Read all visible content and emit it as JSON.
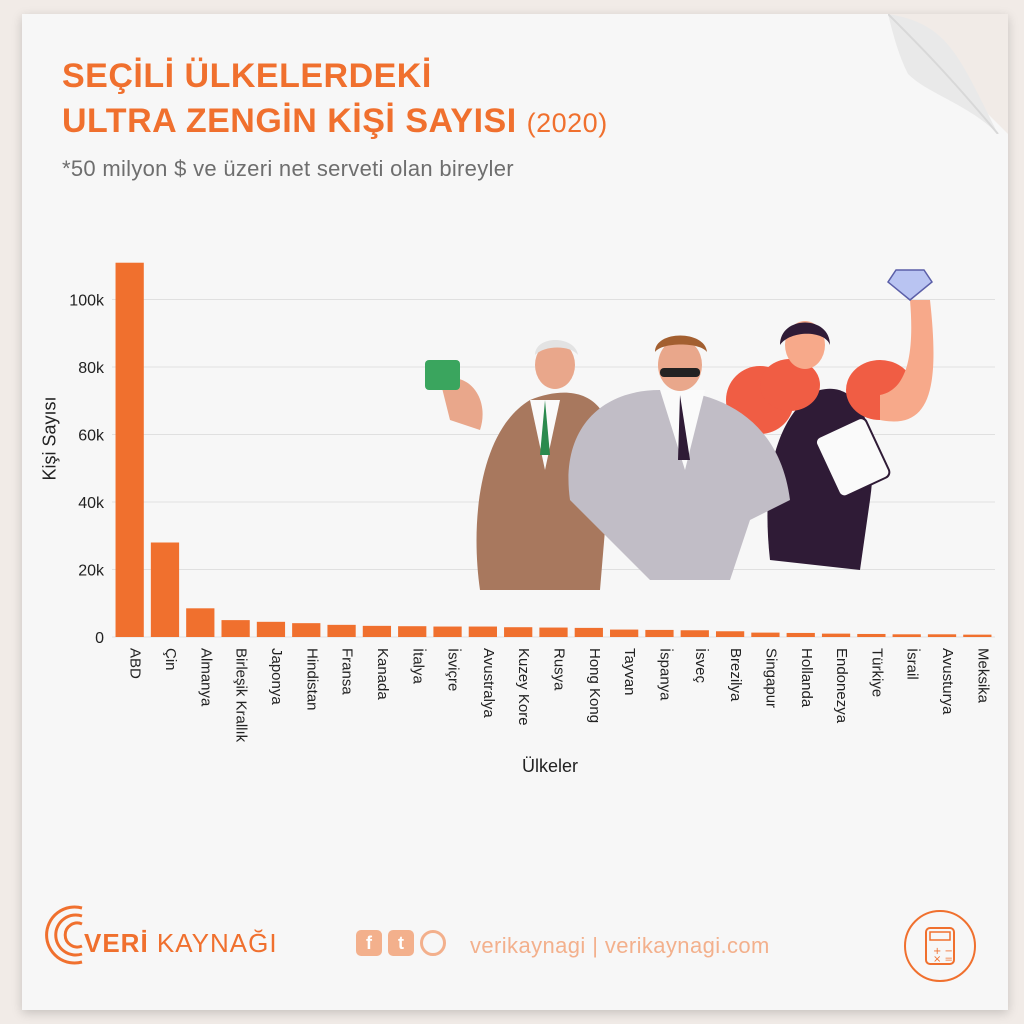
{
  "header": {
    "title_line1": "SEÇİLİ ÜLKELERDEKİ",
    "title_line2": "ULTRA ZENGİN KİŞİ SAYISI",
    "year": "(2020)",
    "subtitle": "*50 milyon $ ve üzeri net serveti olan bireyler"
  },
  "chart_data": {
    "type": "bar",
    "title": "SEÇİLİ ÜLKELERDEKİ ULTRA ZENGİN KİŞİ SAYISI (2020)",
    "xlabel": "Ülkeler",
    "ylabel": "Kişi Sayısı",
    "ylim": [
      0,
      110000
    ],
    "yticks": [
      0,
      20000,
      40000,
      60000,
      80000,
      100000
    ],
    "ytick_labels": [
      "0",
      "20k",
      "40k",
      "60k",
      "80k",
      "100k"
    ],
    "grid": true,
    "bar_color": "#f0702e",
    "categories": [
      "ABD",
      "Çin",
      "Almanya",
      "Birleşik Krallık",
      "Japonya",
      "Hindistan",
      "Fransa",
      "Kanada",
      "İtalya",
      "İsviçre",
      "Avustralya",
      "Kuzey Kore",
      "Rusya",
      "Hong Kong",
      "Tayvan",
      "İspanya",
      "İsveç",
      "Brezilya",
      "Singapur",
      "Hollanda",
      "Endonezya",
      "Türkiye",
      "İsrail",
      "Avusturya",
      "Meksika"
    ],
    "values": [
      110900,
      28000,
      8500,
      5000,
      4500,
      4100,
      3600,
      3300,
      3200,
      3100,
      3100,
      2900,
      2800,
      2700,
      2200,
      2100,
      2000,
      1700,
      1300,
      1200,
      1000,
      900,
      800,
      800,
      700
    ]
  },
  "footer": {
    "brand_bold": "VERİ",
    "brand_rest": "KAYNAĞI",
    "social_text": "verikaynagi | verikaynagi.com"
  },
  "colors": {
    "accent": "#f0702e",
    "light_accent": "#f3b08c",
    "grid": "#e0e0e0"
  }
}
